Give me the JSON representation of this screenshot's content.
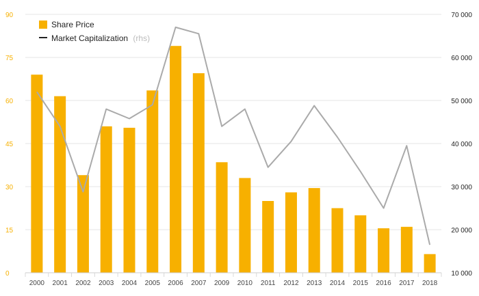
{
  "colors": {
    "bar": "#F7B000",
    "line": "#AAAAAA",
    "left_axis_text": "#F7B000",
    "grid": "#E6E6E6",
    "legend_line_swatch": "#222222"
  },
  "legend": {
    "bar_label": "Share Price",
    "line_label": "Market Capitalization",
    "line_note": "(rhs)"
  },
  "chart_data": {
    "type": "bar",
    "categories": [
      "2000",
      "2001",
      "2002",
      "2003",
      "2004",
      "2005",
      "2006",
      "2007",
      "2009",
      "2010",
      "2011",
      "2012",
      "2013",
      "2014",
      "2015",
      "2016",
      "2017",
      "2018"
    ],
    "series": [
      {
        "name": "Share Price",
        "type": "bar",
        "axis": "left",
        "values": [
          69,
          61.5,
          34,
          51,
          50.5,
          63.5,
          79,
          69.5,
          38.5,
          33,
          25,
          28,
          29.5,
          22.5,
          20,
          15.5,
          16,
          6.5
        ]
      },
      {
        "name": "Market Capitalization",
        "type": "line",
        "axis": "right",
        "values": [
          52000,
          44000,
          28800,
          48000,
          45800,
          49000,
          67000,
          65500,
          44000,
          48000,
          34500,
          40500,
          48800,
          41500,
          33500,
          25000,
          39500,
          16500
        ]
      }
    ],
    "y_left": {
      "ticks": [
        "0",
        "15",
        "30",
        "45",
        "60",
        "75",
        "90"
      ],
      "range": [
        0,
        90
      ]
    },
    "y_right": {
      "ticks": [
        "10 000",
        "20 000",
        "30 000",
        "40 000",
        "50 000",
        "60 000",
        "70 000"
      ],
      "range": [
        10000,
        70000
      ]
    },
    "grid": true,
    "legend_position": "top-left"
  }
}
